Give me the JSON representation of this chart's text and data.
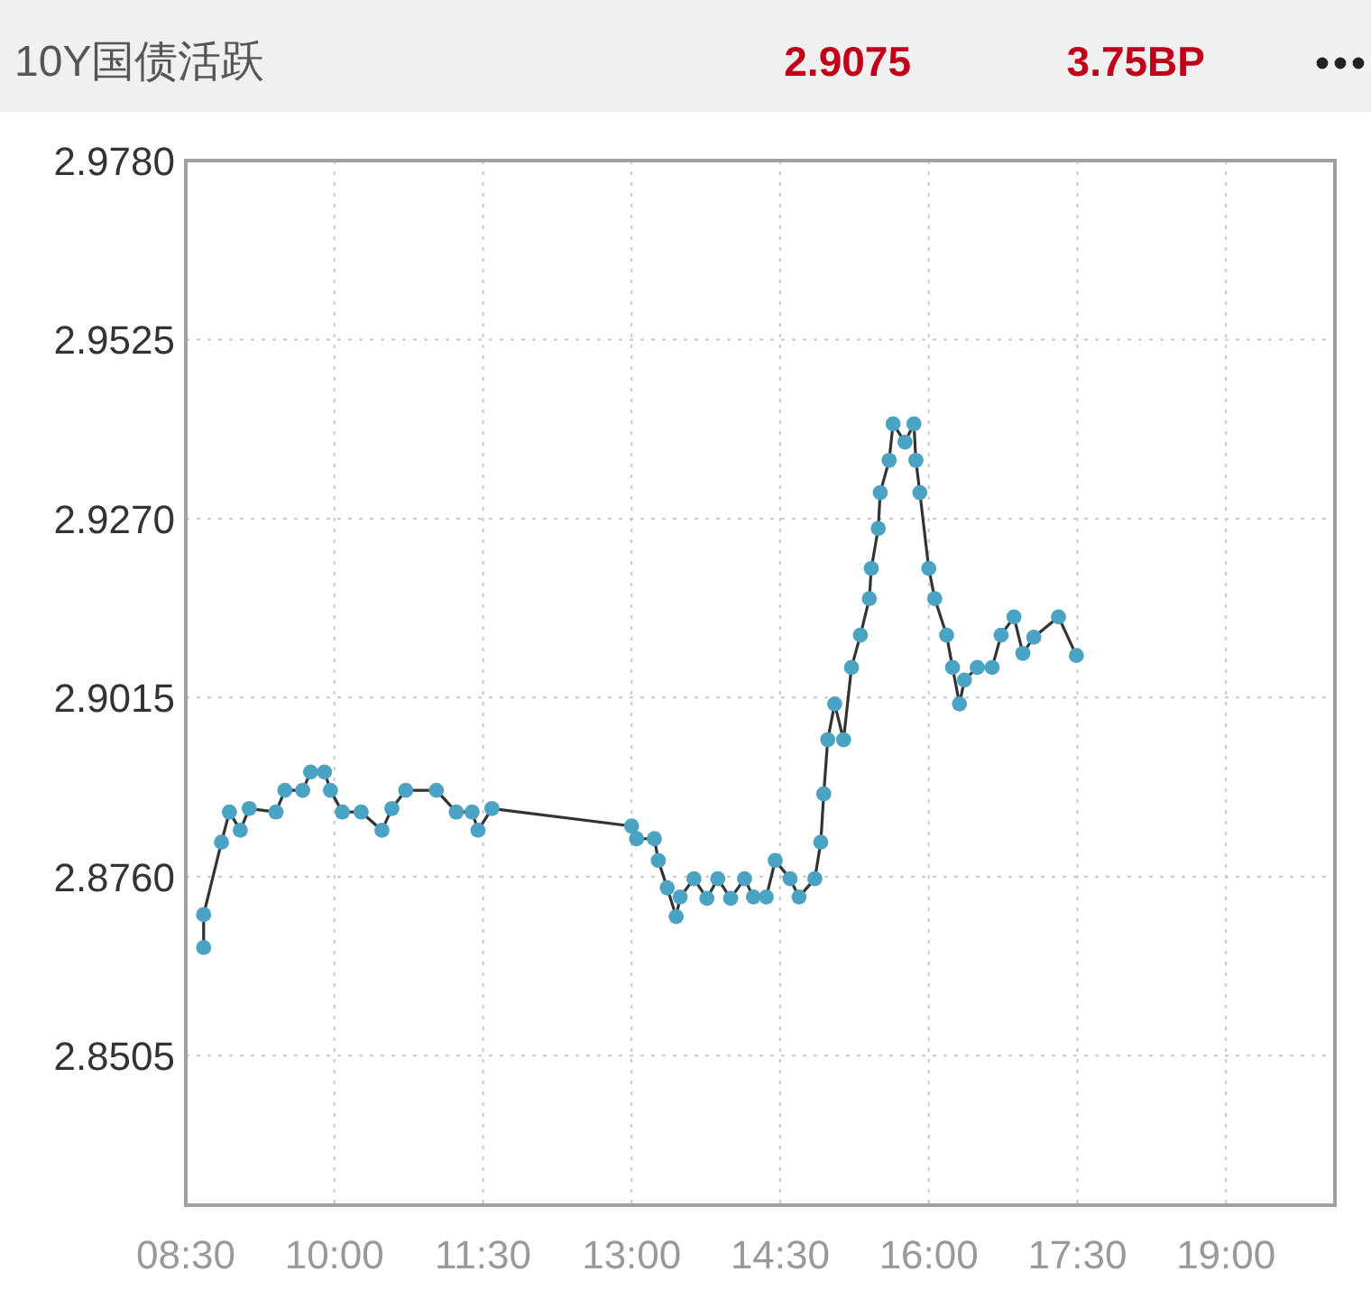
{
  "chart_data": {
    "type": "line",
    "title": "10Y国债活跃",
    "annotations": [
      "2.9075",
      "3.75BP"
    ],
    "xlim": [
      8.5,
      20.1
    ],
    "ylim": [
      2.8292,
      2.978
    ],
    "xticks": [
      {
        "value": 8.5,
        "label": "08:30"
      },
      {
        "value": 10,
        "label": "10:00"
      },
      {
        "value": 11.5,
        "label": "11:30"
      },
      {
        "value": 13,
        "label": "13:00"
      },
      {
        "value": 14.5,
        "label": "14:30"
      },
      {
        "value": 16,
        "label": "16:00"
      },
      {
        "value": 17.5,
        "label": "17:30"
      },
      {
        "value": 19,
        "label": "19:00"
      }
    ],
    "yticks": [
      {
        "value": 2.8505,
        "label": "2.8505"
      },
      {
        "value": 2.876,
        "label": "2.8760"
      },
      {
        "value": 2.9015,
        "label": "2.9015"
      },
      {
        "value": 2.927,
        "label": "2.9270"
      },
      {
        "value": 2.9525,
        "label": "2.9525"
      },
      {
        "value": 2.978,
        "label": "2.9780"
      }
    ],
    "grid": true,
    "marker": "circle",
    "line_style": "solid",
    "series": [
      {
        "color": "#4ba3c3",
        "x": [
          8.68,
          8.68,
          8.86,
          8.94,
          9.05,
          9.14,
          9.41,
          9.5,
          9.68,
          9.76,
          9.9,
          9.96,
          10.08,
          10.27,
          10.48,
          10.58,
          10.72,
          11.03,
          11.23,
          11.39,
          11.45,
          11.59,
          13.0,
          13.05,
          13.23,
          13.27,
          13.36,
          13.45,
          13.49,
          13.63,
          13.76,
          13.87,
          14.0,
          14.14,
          14.23,
          14.36,
          14.45,
          14.6,
          14.69,
          14.85,
          14.91,
          14.94,
          14.98,
          15.05,
          15.14,
          15.22,
          15.31,
          15.4,
          15.42,
          15.49,
          15.51,
          15.6,
          15.64,
          15.76,
          15.85,
          15.87,
          15.91,
          16.0,
          16.06,
          16.18,
          16.24,
          16.31,
          16.36,
          16.49,
          16.64,
          16.73,
          16.86,
          16.95,
          17.06,
          17.31,
          17.49
        ],
        "values": [
          2.8659,
          2.8706,
          2.8809,
          2.8852,
          2.8826,
          2.8857,
          2.8852,
          2.8883,
          2.8883,
          2.8909,
          2.8909,
          2.8883,
          2.8852,
          2.8852,
          2.8826,
          2.8857,
          2.8883,
          2.8883,
          2.8852,
          2.8852,
          2.8826,
          2.8857,
          2.8832,
          2.8814,
          2.8814,
          2.8783,
          2.8744,
          2.8703,
          2.8731,
          2.8757,
          2.8729,
          2.8757,
          2.8729,
          2.8757,
          2.8731,
          2.8731,
          2.8783,
          2.8757,
          2.8731,
          2.8757,
          2.8809,
          2.8878,
          2.8955,
          2.9006,
          2.8955,
          2.9058,
          2.9104,
          2.9156,
          2.9199,
          2.9256,
          2.9307,
          2.9353,
          2.9405,
          2.9379,
          2.9405,
          2.9353,
          2.9307,
          2.9199,
          2.9156,
          2.9104,
          2.9058,
          2.9006,
          2.904,
          2.9058,
          2.9058,
          2.9104,
          2.913,
          2.9078,
          2.9101,
          2.913,
          2.9075
        ]
      }
    ]
  }
}
